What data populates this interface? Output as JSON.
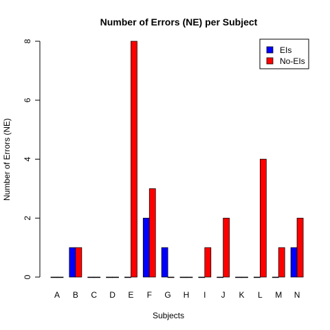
{
  "chart_data": {
    "type": "bar",
    "title": "Number of Errors (NE) per Subject",
    "xlabel": "Subjects",
    "ylabel": "Number of Errors (NE)",
    "categories": [
      "A",
      "B",
      "C",
      "D",
      "E",
      "F",
      "G",
      "H",
      "I",
      "J",
      "K",
      "L",
      "M",
      "N"
    ],
    "series": [
      {
        "name": "EIs",
        "color": "#0000ff",
        "values": [
          0,
          1,
          0,
          0,
          0,
          2,
          1,
          0,
          0,
          0,
          0,
          0,
          0,
          1
        ]
      },
      {
        "name": "No-EIs",
        "color": "#ff0000",
        "values": [
          0,
          1,
          0,
          0,
          8,
          3,
          0,
          0,
          1,
          2,
          0,
          4,
          1,
          2
        ]
      }
    ],
    "ylim": [
      0,
      8
    ],
    "yticks": [
      0,
      2,
      4,
      6,
      8
    ],
    "grid": false,
    "legend_position": "top-right"
  }
}
